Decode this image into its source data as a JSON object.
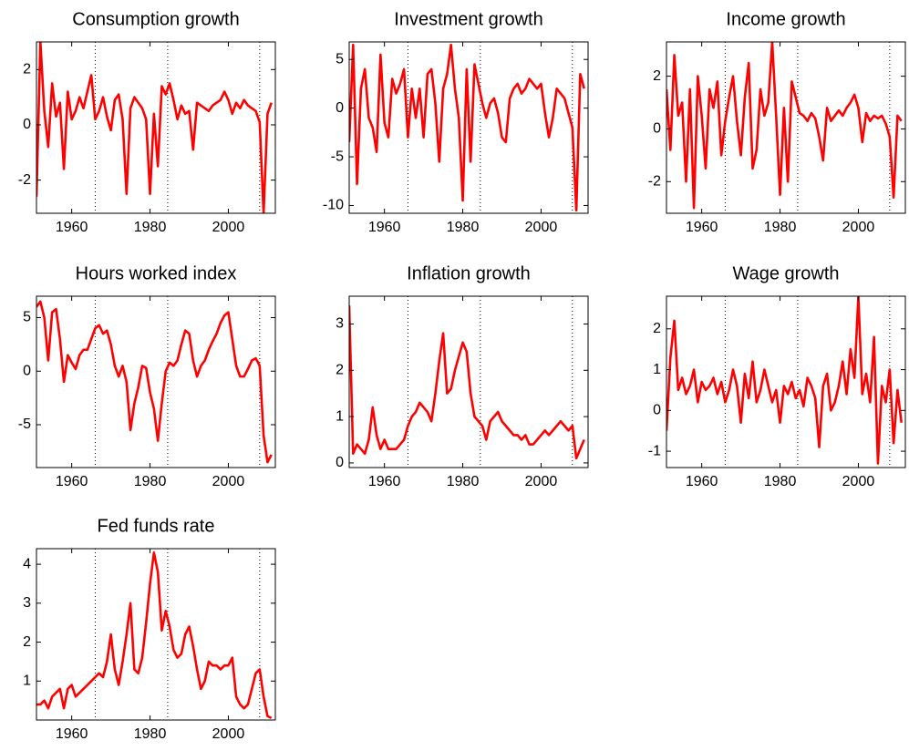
{
  "chart_data": [
    {
      "type": "line",
      "title": "Consumption growth",
      "color": "#ff0000",
      "x": [
        1951,
        1952,
        1953,
        1954,
        1955,
        1956,
        1957,
        1958,
        1959,
        1960,
        1961,
        1962,
        1963,
        1964,
        1965,
        1966,
        1967,
        1968,
        1969,
        1970,
        1971,
        1972,
        1973,
        1974,
        1975,
        1976,
        1977,
        1978,
        1979,
        1980,
        1981,
        1982,
        1983,
        1984,
        1985,
        1986,
        1987,
        1988,
        1989,
        1990,
        1991,
        1992,
        1993,
        1994,
        1995,
        1996,
        1997,
        1998,
        1999,
        2000,
        2001,
        2002,
        2003,
        2004,
        2005,
        2006,
        2007,
        2008,
        2009,
        2010,
        2011
      ],
      "values": [
        -2.6,
        3.0,
        0.5,
        -0.8,
        1.5,
        0.3,
        0.8,
        -1.6,
        1.2,
        0.2,
        0.5,
        1.0,
        0.6,
        1.2,
        1.8,
        0.2,
        0.5,
        1.0,
        0.3,
        -0.2,
        0.9,
        1.1,
        0.2,
        -2.5,
        0.6,
        1.0,
        0.8,
        0.6,
        0.2,
        -2.5,
        0.4,
        -1.5,
        1.4,
        1.1,
        1.5,
        0.9,
        0.2,
        0.7,
        0.4,
        0.5,
        -0.9,
        0.8,
        0.7,
        0.6,
        0.5,
        0.7,
        0.8,
        0.9,
        1.2,
        0.9,
        0.4,
        0.8,
        0.6,
        0.9,
        0.7,
        0.6,
        0.5,
        0.1,
        -3.2,
        0.4,
        0.8
      ],
      "xlim": [
        1951,
        2012
      ],
      "xticks": [
        1960,
        1980,
        2000
      ],
      "ylim": [
        -3.2,
        3
      ],
      "yticks": [
        -2,
        0,
        2
      ],
      "vlines": [
        1966,
        1984.5,
        2008
      ]
    },
    {
      "type": "line",
      "title": "Investment growth",
      "color": "#ff0000",
      "x": [
        1951,
        1952,
        1953,
        1954,
        1955,
        1956,
        1957,
        1958,
        1959,
        1960,
        1961,
        1962,
        1963,
        1964,
        1965,
        1966,
        1967,
        1968,
        1969,
        1970,
        1971,
        1972,
        1973,
        1974,
        1975,
        1976,
        1977,
        1978,
        1979,
        1980,
        1981,
        1982,
        1983,
        1984,
        1985,
        1986,
        1987,
        1988,
        1989,
        1990,
        1991,
        1992,
        1993,
        1994,
        1995,
        1996,
        1997,
        1998,
        1999,
        2000,
        2001,
        2002,
        2003,
        2004,
        2005,
        2006,
        2007,
        2008,
        2009,
        2010,
        2011
      ],
      "values": [
        -3.5,
        6.5,
        -7.8,
        2.0,
        4.0,
        -1.0,
        -2.0,
        -4.5,
        5.5,
        -1.5,
        -3.0,
        3.0,
        1.5,
        2.5,
        4.0,
        -3.0,
        2.0,
        -1.0,
        2.0,
        -3.0,
        3.5,
        4.0,
        0.5,
        -5.5,
        2.0,
        3.5,
        6.5,
        2.0,
        -1.0,
        -9.5,
        4.0,
        -5.5,
        4.5,
        2.5,
        0.5,
        -1.0,
        0.5,
        1.0,
        -0.5,
        -3.0,
        -3.5,
        1.0,
        2.0,
        2.5,
        1.5,
        2.0,
        3.0,
        2.5,
        2.0,
        2.5,
        -0.5,
        -3.0,
        -1.0,
        2.0,
        1.5,
        1.0,
        -0.5,
        -2.0,
        -10.5,
        3.5,
        2.0
      ],
      "xlim": [
        1951,
        2012
      ],
      "xticks": [
        1960,
        1980,
        2000
      ],
      "ylim": [
        -10.8,
        6.8
      ],
      "yticks": [
        -10,
        -5,
        0,
        5
      ],
      "vlines": [
        1966,
        1984.5,
        2008
      ]
    },
    {
      "type": "line",
      "title": "Income growth",
      "color": "#ff0000",
      "x": [
        1951,
        1952,
        1953,
        1954,
        1955,
        1956,
        1957,
        1958,
        1959,
        1960,
        1961,
        1962,
        1963,
        1964,
        1965,
        1966,
        1967,
        1968,
        1969,
        1970,
        1971,
        1972,
        1973,
        1974,
        1975,
        1976,
        1977,
        1978,
        1979,
        1980,
        1981,
        1982,
        1983,
        1984,
        1985,
        1986,
        1987,
        1988,
        1989,
        1990,
        1991,
        1992,
        1993,
        1994,
        1995,
        1996,
        1997,
        1998,
        1999,
        2000,
        2001,
        2002,
        2003,
        2004,
        2005,
        2006,
        2007,
        2008,
        2009,
        2010,
        2011
      ],
      "values": [
        1.5,
        -0.8,
        2.8,
        0.5,
        1.0,
        -2.0,
        1.5,
        -3.0,
        2.0,
        0.5,
        -1.5,
        1.5,
        0.8,
        1.8,
        -1.0,
        0.3,
        1.2,
        2.0,
        0.3,
        -1.0,
        1.2,
        2.5,
        -1.5,
        -0.8,
        1.5,
        0.5,
        1.0,
        3.3,
        0.5,
        -2.5,
        0.8,
        -2.0,
        1.8,
        1.2,
        0.6,
        0.5,
        0.3,
        0.6,
        0.4,
        -0.3,
        -1.2,
        0.8,
        0.3,
        0.5,
        0.7,
        0.5,
        0.8,
        1.0,
        1.3,
        0.8,
        -0.5,
        0.6,
        0.3,
        0.5,
        0.4,
        0.5,
        0.2,
        -0.3,
        -2.6,
        0.5,
        0.3
      ],
      "xlim": [
        1951,
        2012
      ],
      "xticks": [
        1960,
        1980,
        2000
      ],
      "ylim": [
        -3.2,
        3.3
      ],
      "yticks": [
        -2,
        0,
        2
      ],
      "vlines": [
        1966,
        1984.5,
        2008
      ]
    },
    {
      "type": "line",
      "title": "Hours worked index",
      "color": "#ff0000",
      "x": [
        1951,
        1952,
        1953,
        1954,
        1955,
        1956,
        1957,
        1958,
        1959,
        1960,
        1961,
        1962,
        1963,
        1964,
        1965,
        1966,
        1967,
        1968,
        1969,
        1970,
        1971,
        1972,
        1973,
        1974,
        1975,
        1976,
        1977,
        1978,
        1979,
        1980,
        1981,
        1982,
        1983,
        1984,
        1985,
        1986,
        1987,
        1988,
        1989,
        1990,
        1991,
        1992,
        1993,
        1994,
        1995,
        1996,
        1997,
        1998,
        1999,
        2000,
        2001,
        2002,
        2003,
        2004,
        2005,
        2006,
        2007,
        2008,
        2009,
        2010,
        2011
      ],
      "values": [
        6.0,
        6.5,
        5.0,
        1.0,
        5.5,
        5.8,
        3.0,
        -1.0,
        1.5,
        0.8,
        0.2,
        1.5,
        2.0,
        2.0,
        3.0,
        4.0,
        4.3,
        3.5,
        3.8,
        2.5,
        0.5,
        -0.5,
        0.5,
        -1.0,
        -5.5,
        -3.0,
        -1.5,
        0.5,
        0.3,
        -2.0,
        -3.5,
        -6.5,
        -3.0,
        0.0,
        0.8,
        0.5,
        1.0,
        2.5,
        3.8,
        3.5,
        1.0,
        -0.5,
        0.5,
        1.0,
        2.0,
        2.8,
        3.5,
        4.5,
        5.2,
        5.5,
        3.0,
        0.5,
        -0.5,
        -0.5,
        0.2,
        1.0,
        1.2,
        0.5,
        -6.0,
        -8.5,
        -7.8
      ],
      "xlim": [
        1951,
        2012
      ],
      "xticks": [
        1960,
        1980,
        2000
      ],
      "ylim": [
        -9,
        7
      ],
      "yticks": [
        -5,
        0,
        5
      ],
      "vlines": [
        1966,
        1984.5,
        2008
      ]
    },
    {
      "type": "line",
      "title": "Inflation growth",
      "color": "#ff0000",
      "x": [
        1951,
        1952,
        1953,
        1954,
        1955,
        1956,
        1957,
        1958,
        1959,
        1960,
        1961,
        1962,
        1963,
        1964,
        1965,
        1966,
        1967,
        1968,
        1969,
        1970,
        1971,
        1972,
        1973,
        1974,
        1975,
        1976,
        1977,
        1978,
        1979,
        1980,
        1981,
        1982,
        1983,
        1984,
        1985,
        1986,
        1987,
        1988,
        1989,
        1990,
        1991,
        1992,
        1993,
        1994,
        1995,
        1996,
        1997,
        1998,
        1999,
        2000,
        2001,
        2002,
        2003,
        2004,
        2005,
        2006,
        2007,
        2008,
        2009,
        2010,
        2011
      ],
      "values": [
        3.4,
        0.2,
        0.4,
        0.3,
        0.2,
        0.5,
        1.2,
        0.6,
        0.3,
        0.5,
        0.3,
        0.3,
        0.3,
        0.4,
        0.5,
        0.8,
        1.0,
        1.1,
        1.3,
        1.2,
        1.1,
        0.9,
        1.5,
        2.2,
        2.8,
        1.5,
        1.6,
        2.0,
        2.3,
        2.6,
        2.4,
        1.5,
        1.0,
        0.9,
        0.8,
        0.5,
        0.9,
        1.0,
        1.1,
        0.9,
        0.8,
        0.7,
        0.6,
        0.6,
        0.5,
        0.6,
        0.4,
        0.4,
        0.5,
        0.6,
        0.7,
        0.6,
        0.7,
        0.8,
        0.9,
        0.8,
        0.7,
        0.8,
        0.1,
        0.3,
        0.5
      ],
      "xlim": [
        1951,
        2012
      ],
      "xticks": [
        1960,
        1980,
        2000
      ],
      "ylim": [
        -0.1,
        3.6
      ],
      "yticks": [
        0,
        1,
        2,
        3
      ],
      "vlines": [
        1966,
        1984.5,
        2008
      ]
    },
    {
      "type": "line",
      "title": "Wage growth",
      "color": "#ff0000",
      "x": [
        1951,
        1952,
        1953,
        1954,
        1955,
        1956,
        1957,
        1958,
        1959,
        1960,
        1961,
        1962,
        1963,
        1964,
        1965,
        1966,
        1967,
        1968,
        1969,
        1970,
        1971,
        1972,
        1973,
        1974,
        1975,
        1976,
        1977,
        1978,
        1979,
        1980,
        1981,
        1982,
        1983,
        1984,
        1985,
        1986,
        1987,
        1988,
        1989,
        1990,
        1991,
        1992,
        1993,
        1994,
        1995,
        1996,
        1997,
        1998,
        1999,
        2000,
        2001,
        2002,
        2003,
        2004,
        2005,
        2006,
        2007,
        2008,
        2009,
        2010,
        2011
      ],
      "values": [
        -0.5,
        1.3,
        2.2,
        0.5,
        0.8,
        0.4,
        0.6,
        1.0,
        0.2,
        0.7,
        0.5,
        0.6,
        0.8,
        0.4,
        0.7,
        0.2,
        0.5,
        1.0,
        0.6,
        -0.3,
        0.9,
        0.3,
        1.2,
        0.2,
        0.5,
        1.0,
        0.6,
        0.2,
        0.5,
        -0.3,
        0.6,
        0.4,
        0.7,
        0.3,
        0.5,
        0.1,
        0.8,
        0.6,
        0.3,
        -0.9,
        0.6,
        0.9,
        0.0,
        0.2,
        0.6,
        1.2,
        0.4,
        1.5,
        0.8,
        2.8,
        0.4,
        0.9,
        0.2,
        1.8,
        -1.3,
        0.6,
        0.2,
        1.0,
        -0.8,
        0.5,
        -0.3
      ],
      "xlim": [
        1951,
        2012
      ],
      "xticks": [
        1960,
        1980,
        2000
      ],
      "ylim": [
        -1.4,
        2.8
      ],
      "yticks": [
        -1,
        0,
        1,
        2
      ],
      "vlines": [
        1966,
        1984.5,
        2008
      ]
    },
    {
      "type": "line",
      "title": "Fed funds rate",
      "color": "#ff0000",
      "x": [
        1951,
        1952,
        1953,
        1954,
        1955,
        1956,
        1957,
        1958,
        1959,
        1960,
        1961,
        1962,
        1963,
        1964,
        1965,
        1966,
        1967,
        1968,
        1969,
        1970,
        1971,
        1972,
        1973,
        1974,
        1975,
        1976,
        1977,
        1978,
        1979,
        1980,
        1981,
        1982,
        1983,
        1984,
        1985,
        1986,
        1987,
        1988,
        1989,
        1990,
        1991,
        1992,
        1993,
        1994,
        1995,
        1996,
        1997,
        1998,
        1999,
        2000,
        2001,
        2002,
        2003,
        2004,
        2005,
        2006,
        2007,
        2008,
        2009,
        2010,
        2011
      ],
      "values": [
        0.4,
        0.4,
        0.5,
        0.3,
        0.6,
        0.7,
        0.8,
        0.3,
        0.8,
        0.9,
        0.6,
        0.7,
        0.8,
        0.9,
        1.0,
        1.1,
        1.2,
        1.1,
        1.5,
        2.2,
        1.3,
        0.9,
        1.5,
        2.2,
        3.0,
        1.3,
        1.2,
        1.6,
        2.5,
        3.5,
        4.3,
        3.8,
        2.3,
        2.8,
        2.4,
        1.8,
        1.6,
        1.7,
        2.2,
        2.4,
        1.9,
        1.3,
        0.8,
        1.0,
        1.5,
        1.4,
        1.4,
        1.3,
        1.4,
        1.4,
        1.6,
        0.6,
        0.4,
        0.3,
        0.4,
        0.8,
        1.2,
        1.3,
        0.6,
        0.1,
        0.05
      ],
      "xlim": [
        1951,
        2012
      ],
      "xticks": [
        1960,
        1980,
        2000
      ],
      "ylim": [
        0,
        4.4
      ],
      "yticks": [
        1,
        2,
        3,
        4
      ],
      "vlines": [
        1966,
        1984.5,
        2008
      ]
    }
  ]
}
